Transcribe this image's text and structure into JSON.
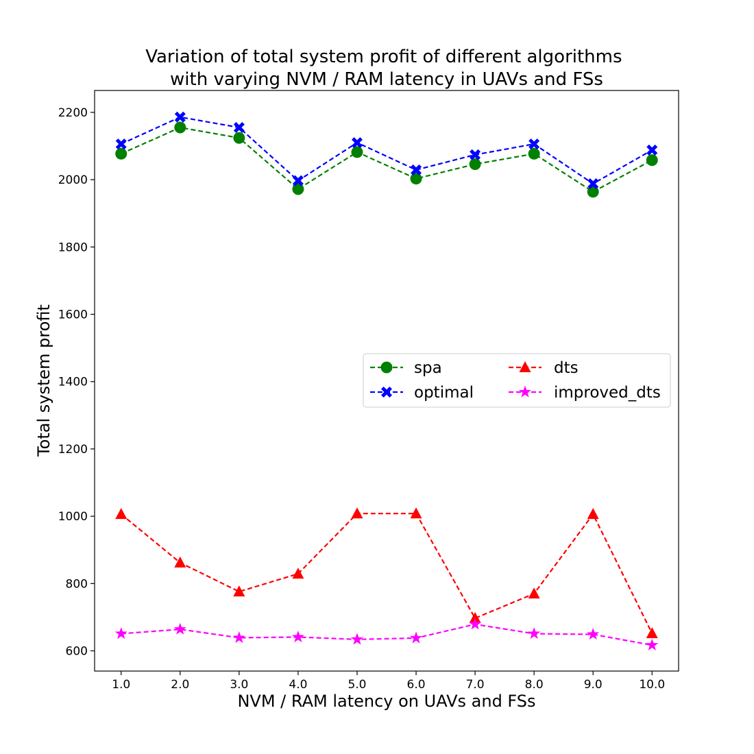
{
  "chart_data": {
    "type": "line",
    "title": "Variation of total system profit of different algorithms\nwith varying NVM / RAM latency in UAVs and FSs",
    "xlabel": "NVM / RAM latency on UAVs and FSs",
    "ylabel": "Total system profit",
    "x": [
      1.0,
      2.0,
      3.0,
      4.0,
      5.0,
      6.0,
      7.0,
      8.0,
      9.0,
      10.0
    ],
    "x_tick_labels": [
      "1.0",
      "2.0",
      "3.0",
      "4.0",
      "5.0",
      "6.0",
      "7.0",
      "8.0",
      "9.0",
      "10.0"
    ],
    "y_ticks": [
      600,
      800,
      1000,
      1200,
      1400,
      1600,
      1800,
      2000,
      2200
    ],
    "xlim": [
      0.55,
      10.45
    ],
    "ylim": [
      540,
      2265
    ],
    "grid": false,
    "legend_placement": "center-right",
    "series": [
      {
        "name": "spa",
        "color": "#008000",
        "marker": "circle",
        "values": [
          2077,
          2155,
          2124,
          1972,
          2082,
          2003,
          2046,
          2077,
          1964,
          2058
        ]
      },
      {
        "name": "optimal",
        "color": "#0000ff",
        "marker": "x",
        "values": [
          2106,
          2186,
          2155,
          1997,
          2110,
          2029,
          2074,
          2106,
          1988,
          2088
        ]
      },
      {
        "name": "dts",
        "color": "#ff0000",
        "marker": "triangle",
        "values": [
          1006,
          862,
          776,
          829,
          1008,
          1008,
          697,
          770,
          1006,
          652
        ]
      },
      {
        "name": "improved_dts",
        "color": "#ff00ff",
        "marker": "star",
        "values": [
          651,
          664,
          639,
          641,
          634,
          638,
          679,
          651,
          649,
          617
        ]
      }
    ]
  }
}
